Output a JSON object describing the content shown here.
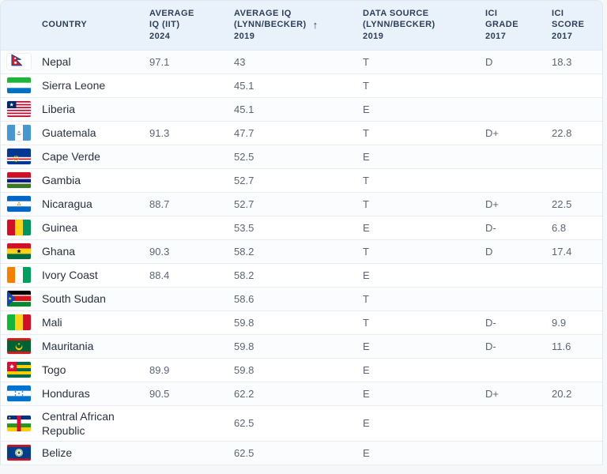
{
  "table": {
    "sort_icon": "↑",
    "columns": [
      {
        "id": "country",
        "label": "COUNTRY",
        "sorted": false
      },
      {
        "id": "avg-iq-iit-2024",
        "label": "AVERAGE\nIQ (IIT)\n2024",
        "sorted": false
      },
      {
        "id": "avg-iq-lynn-becker-2019",
        "label": "AVERAGE IQ\n(LYNN/BECKER)\n2019",
        "sorted": true
      },
      {
        "id": "data-source-lynn-becker-2019",
        "label": "DATA SOURCE\n(LYNN/BECKER)\n2019",
        "sorted": false
      },
      {
        "id": "ici-grade-2017",
        "label": "ICI\nGRADE\n2017",
        "sorted": false
      },
      {
        "id": "ici-score-2017",
        "label": "ICI\nSCORE\n2017",
        "sorted": false
      }
    ],
    "rows": [
      {
        "country": "Nepal",
        "flag": "nepal-flag",
        "avg_iq_iit_2024": "97.1",
        "avg_iq_lynn_2019": "43",
        "data_source": "T",
        "ici_grade": "D",
        "ici_score": "18.3"
      },
      {
        "country": "Sierra Leone",
        "flag": "sierra-leone-flag",
        "avg_iq_iit_2024": "",
        "avg_iq_lynn_2019": "45.1",
        "data_source": "T",
        "ici_grade": "",
        "ici_score": ""
      },
      {
        "country": "Liberia",
        "flag": "liberia-flag",
        "avg_iq_iit_2024": "",
        "avg_iq_lynn_2019": "45.1",
        "data_source": "E",
        "ici_grade": "",
        "ici_score": ""
      },
      {
        "country": "Guatemala",
        "flag": "guatemala-flag",
        "avg_iq_iit_2024": "91.3",
        "avg_iq_lynn_2019": "47.7",
        "data_source": "T",
        "ici_grade": "D+",
        "ici_score": "22.8"
      },
      {
        "country": "Cape Verde",
        "flag": "cape-verde-flag",
        "avg_iq_iit_2024": "",
        "avg_iq_lynn_2019": "52.5",
        "data_source": "E",
        "ici_grade": "",
        "ici_score": ""
      },
      {
        "country": "Gambia",
        "flag": "gambia-flag",
        "avg_iq_iit_2024": "",
        "avg_iq_lynn_2019": "52.7",
        "data_source": "T",
        "ici_grade": "",
        "ici_score": ""
      },
      {
        "country": "Nicaragua",
        "flag": "nicaragua-flag",
        "avg_iq_iit_2024": "88.7",
        "avg_iq_lynn_2019": "52.7",
        "data_source": "T",
        "ici_grade": "D+",
        "ici_score": "22.5"
      },
      {
        "country": "Guinea",
        "flag": "guinea-flag",
        "avg_iq_iit_2024": "",
        "avg_iq_lynn_2019": "53.5",
        "data_source": "E",
        "ici_grade": "D-",
        "ici_score": "6.8"
      },
      {
        "country": "Ghana",
        "flag": "ghana-flag",
        "avg_iq_iit_2024": "90.3",
        "avg_iq_lynn_2019": "58.2",
        "data_source": "T",
        "ici_grade": "D",
        "ici_score": "17.4"
      },
      {
        "country": "Ivory Coast",
        "flag": "ivory-coast-flag",
        "avg_iq_iit_2024": "88.4",
        "avg_iq_lynn_2019": "58.2",
        "data_source": "E",
        "ici_grade": "",
        "ici_score": ""
      },
      {
        "country": "South Sudan",
        "flag": "south-sudan-flag",
        "avg_iq_iit_2024": "",
        "avg_iq_lynn_2019": "58.6",
        "data_source": "T",
        "ici_grade": "",
        "ici_score": ""
      },
      {
        "country": "Mali",
        "flag": "mali-flag",
        "avg_iq_iit_2024": "",
        "avg_iq_lynn_2019": "59.8",
        "data_source": "T",
        "ici_grade": "D-",
        "ici_score": "9.9"
      },
      {
        "country": "Mauritania",
        "flag": "mauritania-flag",
        "avg_iq_iit_2024": "",
        "avg_iq_lynn_2019": "59.8",
        "data_source": "E",
        "ici_grade": "D-",
        "ici_score": "11.6"
      },
      {
        "country": "Togo",
        "flag": "togo-flag",
        "avg_iq_iit_2024": "89.9",
        "avg_iq_lynn_2019": "59.8",
        "data_source": "E",
        "ici_grade": "",
        "ici_score": ""
      },
      {
        "country": "Honduras",
        "flag": "honduras-flag",
        "avg_iq_iit_2024": "90.5",
        "avg_iq_lynn_2019": "62.2",
        "data_source": "E",
        "ici_grade": "D+",
        "ici_score": "20.2"
      },
      {
        "country": "Central African Republic",
        "flag": "central-african-republic-flag",
        "avg_iq_iit_2024": "",
        "avg_iq_lynn_2019": "62.5",
        "data_source": "E",
        "ici_grade": "",
        "ici_score": ""
      },
      {
        "country": "Belize",
        "flag": "belize-flag",
        "avg_iq_iit_2024": "",
        "avg_iq_lynn_2019": "62.5",
        "data_source": "E",
        "ici_grade": "",
        "ici_score": ""
      }
    ],
    "colors": {
      "header_bg": "#e9f1fa",
      "header_text": "#2d3f58",
      "row_separator": "#e9ecf1",
      "country_text": "#2a313c",
      "value_text": "#5d6573"
    }
  }
}
